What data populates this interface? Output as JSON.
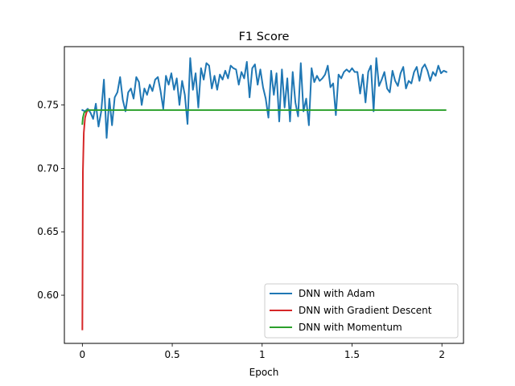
{
  "chart_data": {
    "type": "line",
    "title": "F1 Score",
    "xlabel": "Epoch",
    "ylabel": "",
    "xlim": [
      -0.1,
      2.12
    ],
    "ylim": [
      0.562,
      0.796
    ],
    "xticks": [
      0,
      0.5,
      1,
      1.5,
      2
    ],
    "xtick_labels": [
      "0",
      "0.5",
      "1",
      "1.5",
      "2"
    ],
    "yticks": [
      0.6,
      0.65,
      0.7,
      0.75
    ],
    "ytick_labels": [
      "0.60",
      "0.65",
      "0.70",
      "0.75"
    ],
    "grid": false,
    "legend": "lower-right",
    "series": [
      {
        "name": "DNN with Adam",
        "color": "#1f77b4",
        "x": [
          0.0,
          0.015,
          0.03,
          0.045,
          0.06,
          0.075,
          0.09,
          0.105,
          0.12,
          0.135,
          0.15,
          0.165,
          0.18,
          0.195,
          0.21,
          0.225,
          0.24,
          0.255,
          0.27,
          0.285,
          0.3,
          0.315,
          0.33,
          0.345,
          0.36,
          0.375,
          0.39,
          0.405,
          0.42,
          0.435,
          0.45,
          0.465,
          0.48,
          0.495,
          0.51,
          0.525,
          0.54,
          0.555,
          0.57,
          0.585,
          0.6,
          0.615,
          0.63,
          0.645,
          0.66,
          0.675,
          0.69,
          0.705,
          0.72,
          0.735,
          0.75,
          0.765,
          0.78,
          0.795,
          0.81,
          0.825,
          0.84,
          0.855,
          0.87,
          0.885,
          0.9,
          0.915,
          0.93,
          0.945,
          0.96,
          0.975,
          0.99,
          1.005,
          1.02,
          1.035,
          1.05,
          1.065,
          1.08,
          1.095,
          1.11,
          1.125,
          1.14,
          1.155,
          1.17,
          1.185,
          1.2,
          1.215,
          1.23,
          1.245,
          1.26,
          1.275,
          1.29,
          1.305,
          1.32,
          1.335,
          1.35,
          1.365,
          1.38,
          1.395,
          1.41,
          1.425,
          1.44,
          1.455,
          1.47,
          1.485,
          1.5,
          1.515,
          1.53,
          1.545,
          1.56,
          1.575,
          1.59,
          1.605,
          1.62,
          1.635,
          1.65,
          1.665,
          1.68,
          1.695,
          1.71,
          1.725,
          1.74,
          1.755,
          1.77,
          1.785,
          1.8,
          1.815,
          1.83,
          1.845,
          1.86,
          1.875,
          1.89,
          1.905,
          1.92,
          1.935,
          1.95,
          1.965,
          1.98,
          1.995,
          2.01,
          2.025
        ],
        "y": [
          0.746,
          0.745,
          0.747,
          0.744,
          0.739,
          0.751,
          0.733,
          0.745,
          0.77,
          0.724,
          0.755,
          0.734,
          0.756,
          0.76,
          0.772,
          0.754,
          0.745,
          0.76,
          0.763,
          0.755,
          0.772,
          0.768,
          0.75,
          0.763,
          0.758,
          0.766,
          0.761,
          0.77,
          0.772,
          0.761,
          0.747,
          0.773,
          0.766,
          0.775,
          0.762,
          0.771,
          0.75,
          0.769,
          0.758,
          0.735,
          0.787,
          0.762,
          0.775,
          0.748,
          0.779,
          0.77,
          0.783,
          0.781,
          0.763,
          0.773,
          0.762,
          0.774,
          0.77,
          0.777,
          0.771,
          0.781,
          0.779,
          0.778,
          0.766,
          0.776,
          0.771,
          0.784,
          0.756,
          0.779,
          0.782,
          0.766,
          0.778,
          0.764,
          0.755,
          0.74,
          0.777,
          0.758,
          0.775,
          0.737,
          0.778,
          0.748,
          0.771,
          0.737,
          0.776,
          0.752,
          0.741,
          0.783,
          0.745,
          0.755,
          0.734,
          0.779,
          0.768,
          0.773,
          0.769,
          0.771,
          0.774,
          0.781,
          0.764,
          0.767,
          0.742,
          0.774,
          0.771,
          0.776,
          0.778,
          0.776,
          0.779,
          0.776,
          0.776,
          0.759,
          0.774,
          0.752,
          0.776,
          0.781,
          0.745,
          0.787,
          0.765,
          0.77,
          0.776,
          0.763,
          0.76,
          0.777,
          0.769,
          0.765,
          0.775,
          0.78,
          0.763,
          0.769,
          0.767,
          0.776,
          0.78,
          0.769,
          0.779,
          0.782,
          0.777,
          0.769,
          0.776,
          0.773,
          0.781,
          0.775,
          0.777,
          0.776
        ],
        "y_style": "noisy-around-0.77"
      },
      {
        "name": "DNN with Gradient Descent",
        "color": "#d62728",
        "x": [
          0,
          0.003,
          0.008,
          0.015,
          0.025,
          0.035
        ],
        "y": [
          0.573,
          0.697,
          0.728,
          0.74,
          0.745,
          0.746
        ]
      },
      {
        "name": "DNN with Momentum",
        "color": "#2ca02c",
        "x": [
          0,
          0.003,
          0.01,
          0.03,
          2.02
        ],
        "y": [
          0.735,
          0.74,
          0.744,
          0.746,
          0.746
        ]
      }
    ]
  }
}
